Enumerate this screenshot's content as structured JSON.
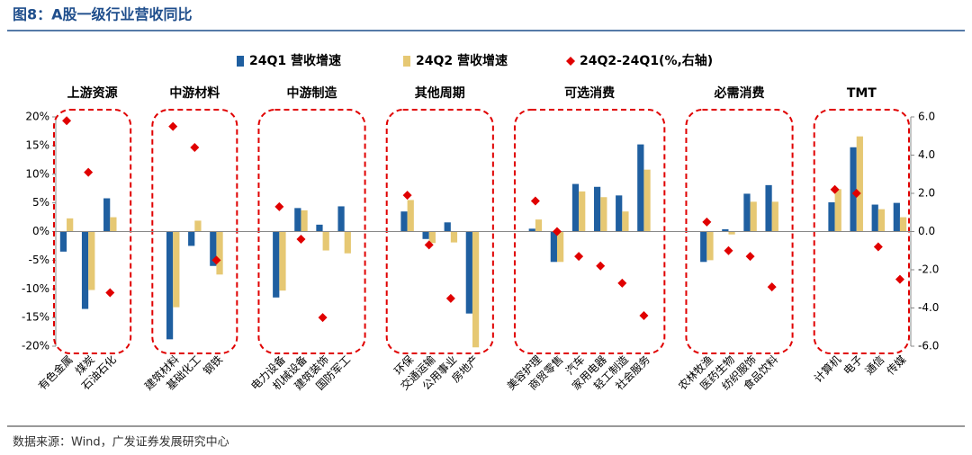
{
  "chart_data": {
    "type": "bar",
    "title": "图8：A股一级行业营收同比",
    "note": "数据来源：Wind，广发证券发展研究中心",
    "groups": [
      {
        "label": "上游资源",
        "categories": [
          "有色金属",
          "煤炭",
          "石油石化"
        ]
      },
      {
        "label": "中游材料",
        "categories": [
          "建筑材料",
          "基础化工",
          "钢铁"
        ]
      },
      {
        "label": "中游制造",
        "categories": [
          "电力设备",
          "机械设备",
          "建筑装饰",
          "国防军工"
        ]
      },
      {
        "label": "其他周期",
        "categories": [
          "环保",
          "交通运输",
          "公用事业",
          "房地产"
        ]
      },
      {
        "label": "可选消费",
        "categories": [
          "美容护理",
          "商贸零售",
          "汽车",
          "家用电器",
          "轻工制造",
          "社会服务"
        ]
      },
      {
        "label": "必需消费",
        "categories": [
          "农林牧渔",
          "医药生物",
          "纺织服饰",
          "食品饮料"
        ]
      },
      {
        "label": "TMT",
        "categories": [
          "计算机",
          "电子",
          "通信",
          "传媒"
        ]
      }
    ],
    "series": [
      {
        "name": "24Q1 营收增速",
        "type": "bar",
        "color": "#1f5fa0",
        "values": [
          -3.5,
          -13.5,
          5.8,
          -18.8,
          -2.5,
          -6.0,
          -11.5,
          4.1,
          1.2,
          4.4,
          3.5,
          -1.3,
          1.6,
          -14.3,
          0.5,
          -5.3,
          8.3,
          7.8,
          6.3,
          15.2,
          -5.3,
          0.4,
          6.6,
          8.1,
          5.1,
          14.7,
          4.7,
          5.0
        ]
      },
      {
        "name": "24Q2 营收增速",
        "type": "bar",
        "color": "#e6c873",
        "values": [
          2.3,
          -10.2,
          2.5,
          -13.2,
          1.9,
          -7.5,
          -10.3,
          3.7,
          -3.3,
          -3.8,
          5.5,
          -2.0,
          -1.9,
          -20.2,
          2.1,
          -5.3,
          7.0,
          6.0,
          3.5,
          10.8,
          -5.0,
          -0.5,
          5.2,
          5.2,
          7.4,
          16.6,
          3.9,
          2.5
        ]
      },
      {
        "name": "24Q2-24Q1(%,右轴)",
        "type": "scatter",
        "axis": "y2",
        "color": "#e00000",
        "values": [
          5.8,
          3.1,
          -3.2,
          5.5,
          4.4,
          -1.5,
          1.3,
          -0.4,
          -4.5,
          null,
          1.9,
          -0.7,
          -3.5,
          null,
          1.6,
          0.0,
          -1.3,
          -1.8,
          -2.7,
          -4.4,
          0.5,
          -1.0,
          -1.3,
          -2.9,
          2.2,
          2.0,
          -0.8,
          -2.5
        ]
      }
    ],
    "ylim": [
      -20,
      20
    ],
    "yticks": [
      {
        "value": -20,
        "label": "-20%"
      },
      {
        "value": -15,
        "label": "-15%"
      },
      {
        "value": -10,
        "label": "-10%"
      },
      {
        "value": -5,
        "label": "-5%"
      },
      {
        "value": 0,
        "label": "0%"
      },
      {
        "value": 5,
        "label": "5%"
      },
      {
        "value": 10,
        "label": "10%"
      },
      {
        "value": 15,
        "label": "15%"
      },
      {
        "value": 20,
        "label": "20%"
      }
    ],
    "y2lim": [
      -6,
      6
    ],
    "y2ticks": [
      {
        "value": -6,
        "label": "-6.0"
      },
      {
        "value": -4,
        "label": "-4.0"
      },
      {
        "value": -2,
        "label": "-2.0"
      },
      {
        "value": 0,
        "label": "0.0"
      },
      {
        "value": 2,
        "label": "2.0"
      },
      {
        "value": 4,
        "label": "4.0"
      },
      {
        "value": 6,
        "label": "6.0"
      }
    ],
    "legend": "top",
    "group_box_color": "#e00000"
  }
}
